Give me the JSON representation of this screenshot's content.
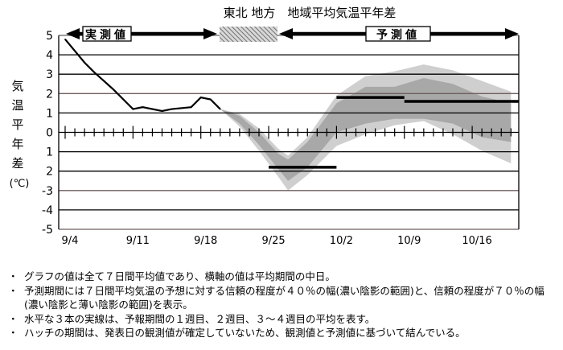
{
  "chart_data": {
    "type": "line",
    "title": "東北 地方　地域平均気温平年差",
    "ylabel": "気温平年差(℃)",
    "ylabel_chars": [
      "気",
      "温",
      "平",
      "年",
      "差",
      "(℃)"
    ],
    "ylim": [
      -5,
      5
    ],
    "y_tick_labels": [
      "5",
      "4",
      "3",
      "2",
      "1",
      "0",
      "1",
      "2",
      "-3",
      "-4",
      "-5"
    ],
    "x_tick_labels": [
      "9/4",
      "9/11",
      "9/18",
      "9/25",
      "10/2",
      "10/9",
      "10/16"
    ],
    "x_range": [
      "9/4",
      "10/20"
    ],
    "grid": true,
    "period_labels": {
      "observed": "実測値",
      "forecast": "予測値"
    },
    "observed": {
      "x": [
        "9/4",
        "9/6",
        "9/7",
        "9/9",
        "9/11",
        "9/12",
        "9/14",
        "9/15",
        "9/17",
        "9/18",
        "9/19",
        "9/20"
      ],
      "y": [
        4.8,
        3.6,
        3.1,
        2.2,
        1.2,
        1.3,
        1.1,
        1.2,
        1.3,
        1.8,
        1.7,
        1.2
      ]
    },
    "forecast_bands": {
      "x": [
        "9/20",
        "9/22",
        "9/24",
        "9/26",
        "9/27",
        "9/29",
        "10/2",
        "10/5",
        "10/8",
        "10/11",
        "10/14",
        "10/17",
        "10/20"
      ],
      "range70_upper": [
        1.2,
        0.95,
        0.2,
        -0.85,
        -1.2,
        -0.25,
        1.9,
        2.9,
        3.15,
        3.5,
        3.2,
        2.65,
        2.1
      ],
      "range40_upper": [
        1.2,
        0.85,
        0.0,
        -1.1,
        -1.4,
        -0.5,
        1.5,
        2.35,
        2.35,
        2.8,
        2.5,
        1.85,
        1.5
      ],
      "range40_lower": [
        1.2,
        0.45,
        -0.65,
        -1.9,
        -2.5,
        -1.8,
        0.0,
        0.45,
        0.7,
        0.7,
        0.45,
        -0.25,
        -0.5
      ],
      "range70_lower": [
        1.2,
        0.3,
        -0.95,
        -2.3,
        -3.0,
        -2.2,
        -0.7,
        -0.1,
        0.37,
        0.58,
        -0.1,
        -0.95,
        -1.6
      ]
    },
    "weekly_means": [
      {
        "period": "1週目",
        "from": "9/25",
        "to": "10/2",
        "value": -1.8
      },
      {
        "period": "2週目",
        "from": "10/2",
        "to": "10/9",
        "value": 1.8
      },
      {
        "period": "3～4週目",
        "from": "10/9",
        "to": "10/20",
        "value": 1.6
      }
    ],
    "hatch_period": [
      "9/20",
      "9/26"
    ],
    "colors": {
      "line": "#000000",
      "band70": "#cfcfcf",
      "band40": "#a8a8a8",
      "grid": "#000000",
      "grid_accent": "#6e5e5e"
    }
  },
  "notes": [
    "グラフの値は全て７日間平均値であり、横軸の値は平均期間の中日。",
    "予測期間には７日間平均気温の予想に対する信頼の程度が４０％の幅(濃い陰影の範囲)と、信頼の程度が７０％の幅(濃い陰影と薄い陰影の範囲)を表示。",
    "水平な３本の実線は、予報期間の１週目、２週目、３～４週目の平均を表す。",
    "ハッチの期間は、発表日の観測値が確定していないため、観測値と予測値に基づいて結んでいる。"
  ],
  "bullet": "・"
}
